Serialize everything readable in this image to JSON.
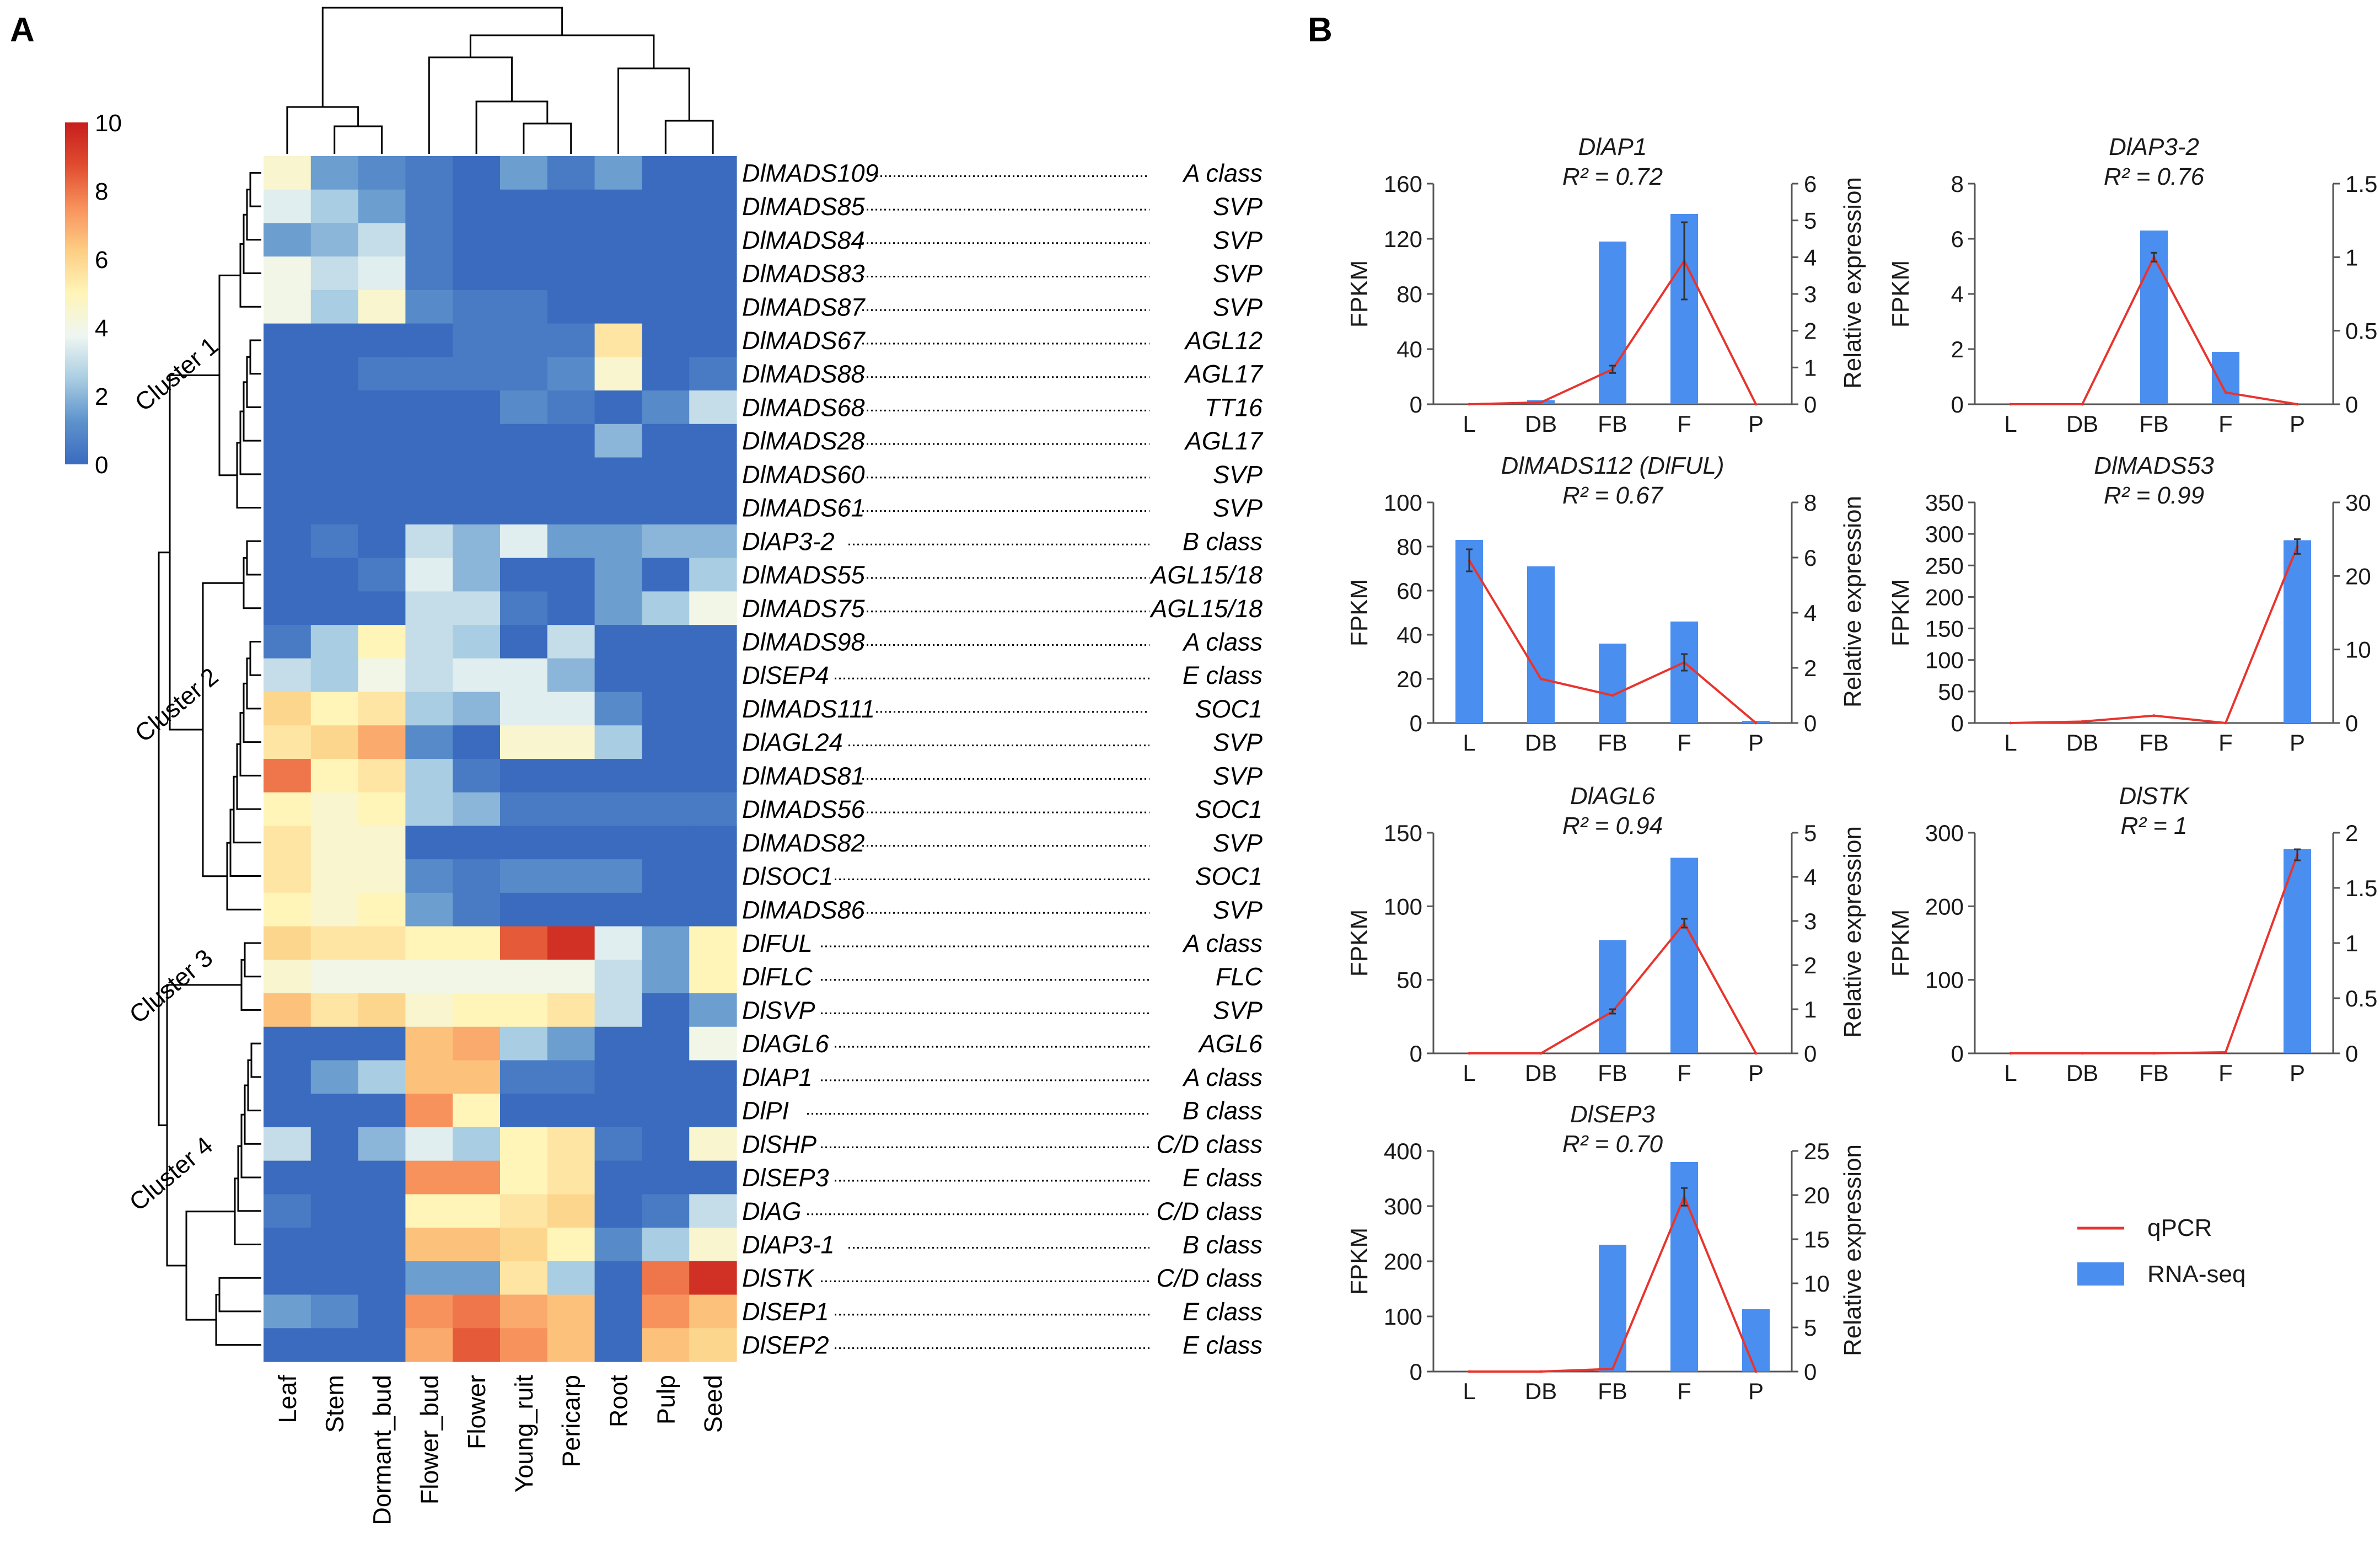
{
  "panel_labels": [
    "A",
    "B"
  ],
  "chart_data": [
    {
      "type": "heatmap",
      "title": "",
      "columns": [
        "Leaf",
        "Stem",
        "Dormant_bud",
        "Flower_bud",
        "Flower",
        "Young_ruit",
        "Pericarp",
        "Root",
        "Pulp",
        "Seed"
      ],
      "rows": [
        "DlMADS109",
        "DlMADS85",
        "DlMADS84",
        "DlMADS83",
        "DlMADS87",
        "DlMADS67",
        "DlMADS88",
        "DlMADS68",
        "DlMADS28",
        "DlMADS60",
        "DlMADS61",
        "DlAP3-2",
        "DlMADS55",
        "DlMADS75",
        "DlMADS98",
        "DlSEP4",
        "DlMADS111",
        "DlAGL24",
        "DlMADS81",
        "DlMADS56",
        "DlMADS82",
        "DlSOC1",
        "DlMADS86",
        "DlFUL",
        "DlFLC",
        "DlSVP",
        "DlAGL6",
        "DlAP1",
        "DlPI",
        "DlSHP",
        "DlSEP3",
        "DlAG",
        "DlAP3-1",
        "DlSTK",
        "DlSEP1",
        "DlSEP2"
      ],
      "row_classes": [
        "A class",
        "SVP",
        "SVP",
        "SVP",
        "SVP",
        "AGL12",
        "AGL17",
        "TT16",
        "AGL17",
        "SVP",
        "SVP",
        "B class",
        "AGL15/18",
        "AGL15/18",
        "A class",
        "E class",
        "SOC1",
        "SVP",
        "SVP",
        "SOC1",
        "SVP",
        "SOC1",
        "SVP",
        "A class",
        "FLC",
        "SVP",
        "AGL6",
        "A class",
        "B class",
        "C/D class",
        "E class",
        "C/D class",
        "B class",
        "C/D class",
        "E class",
        "E class"
      ],
      "values": [
        [
          4.5,
          1.5,
          1,
          0.5,
          0,
          1.5,
          0.5,
          1.5,
          0,
          0
        ],
        [
          3.5,
          2.5,
          1.5,
          0.5,
          0,
          0,
          0,
          0,
          0,
          0
        ],
        [
          1.5,
          2,
          3,
          0.5,
          0,
          0,
          0,
          0,
          0,
          0
        ],
        [
          4,
          3,
          3.5,
          0.5,
          0,
          0,
          0,
          0,
          0,
          0
        ],
        [
          4,
          2.5,
          4.5,
          1,
          0.5,
          0.5,
          0,
          0,
          0,
          0
        ],
        [
          0,
          0,
          0,
          0,
          0.5,
          0.5,
          0.5,
          5.5,
          0,
          0
        ],
        [
          0,
          0,
          0.5,
          0.5,
          0.5,
          0.5,
          1,
          4.5,
          0,
          0.5
        ],
        [
          0,
          0,
          0,
          0,
          0,
          1,
          0.5,
          0,
          1,
          3
        ],
        [
          0,
          0,
          0,
          0,
          0,
          0,
          0,
          2,
          0,
          0
        ],
        [
          0,
          0,
          0,
          0,
          0,
          0,
          0,
          0,
          0,
          0
        ],
        [
          0,
          0,
          0,
          0,
          0,
          0,
          0,
          0,
          0,
          0
        ],
        [
          0,
          0.5,
          0,
          3,
          2,
          3.5,
          1.5,
          1.5,
          2,
          2
        ],
        [
          0,
          0,
          0.5,
          3.5,
          2,
          0,
          0,
          1.5,
          0,
          2.5
        ],
        [
          0,
          0,
          0,
          3,
          3,
          0.5,
          0,
          1.5,
          2.5,
          4
        ],
        [
          0.5,
          2.5,
          5,
          3,
          2.5,
          0,
          3,
          0,
          0,
          0
        ],
        [
          3,
          2.5,
          4,
          3,
          3.5,
          3.5,
          2,
          0,
          0,
          0
        ],
        [
          6,
          5,
          5.5,
          2.5,
          2,
          3.5,
          3.5,
          1,
          0,
          0
        ],
        [
          5.5,
          6,
          7,
          1,
          0,
          4.5,
          4.5,
          2.5,
          0,
          0
        ],
        [
          8,
          5,
          5.5,
          2.5,
          0.5,
          0,
          0,
          0,
          0,
          0
        ],
        [
          5,
          4.5,
          5,
          2.5,
          2,
          0.5,
          0.5,
          0.5,
          0.5,
          0.5
        ],
        [
          5.5,
          4.5,
          4.5,
          0,
          0,
          0,
          0,
          0,
          0,
          0
        ],
        [
          5.5,
          4.5,
          4.5,
          1,
          0.5,
          1,
          1,
          1,
          0,
          0
        ],
        [
          5,
          4.5,
          5,
          1.5,
          0.5,
          0,
          0,
          0,
          0,
          0
        ],
        [
          6,
          5.5,
          5.5,
          5,
          5,
          8.5,
          9.5,
          3.5,
          1.5,
          5
        ],
        [
          4.5,
          4,
          4,
          4,
          4,
          4,
          4,
          3,
          1.5,
          5
        ],
        [
          6.5,
          5.5,
          6,
          4.5,
          5,
          5,
          5.5,
          3,
          0,
          1.5
        ],
        [
          0,
          0,
          0,
          6.5,
          7,
          2.5,
          1.5,
          0,
          0,
          4
        ],
        [
          0,
          1.5,
          2.5,
          6.5,
          6.5,
          0.5,
          0.5,
          0,
          0,
          0
        ],
        [
          0,
          0,
          0,
          7.5,
          5,
          0,
          0,
          0,
          0,
          0
        ],
        [
          3,
          0,
          2,
          3.5,
          2.5,
          5,
          5.5,
          0.5,
          0,
          4.5
        ],
        [
          0,
          0,
          0,
          7.5,
          7.5,
          5,
          5.5,
          0,
          0,
          0
        ],
        [
          0.5,
          0,
          0,
          5,
          5,
          5.5,
          6,
          0,
          0.5,
          3
        ],
        [
          0,
          0,
          0,
          6.5,
          6.5,
          6,
          5,
          1,
          2.5,
          4.5
        ],
        [
          0,
          0,
          0,
          1.5,
          1.5,
          5.5,
          2.5,
          0,
          8,
          9.5
        ],
        [
          1.5,
          1,
          0,
          7.5,
          8,
          7,
          6.5,
          0,
          7.5,
          6.5
        ],
        [
          0,
          0,
          0,
          7,
          8.5,
          7.5,
          6.5,
          0,
          6.5,
          6
        ]
      ],
      "color_scale": {
        "min": 0,
        "max": 10,
        "ticks": [
          "10",
          "8",
          "6",
          "4",
          "2",
          "0"
        ],
        "colors": [
          "#3a6bbf",
          "#5d92cc",
          "#a9cde2",
          "#eef6f2",
          "#fff5b8",
          "#fdce84",
          "#f8925c",
          "#e04c2f",
          "#c71e1e"
        ]
      },
      "cluster_labels": [
        "Cluster 1",
        "Cluster 2",
        "Cluster 3",
        "Cluster 4"
      ]
    },
    {
      "type": "bar+line",
      "title": "DlAP1",
      "r2": "R² = 0.72",
      "categories": [
        "L",
        "DB",
        "FB",
        "F",
        "P"
      ],
      "ylabel": "FPKM",
      "y2label": "Relative expression",
      "ylim": [
        0,
        160
      ],
      "yticks": [
        0,
        40,
        80,
        120,
        160
      ],
      "y2lim": [
        0,
        6
      ],
      "y2ticks": [
        0,
        1,
        2,
        3,
        4,
        5,
        6
      ],
      "series": [
        {
          "name": "RNA-seq",
          "axis": "left",
          "kind": "bar",
          "values": [
            0,
            3,
            118,
            138,
            0
          ]
        },
        {
          "name": "qPCR",
          "axis": "right",
          "kind": "line",
          "values": [
            0,
            0.05,
            0.95,
            3.9,
            0
          ],
          "errors": [
            0,
            0,
            0.1,
            1.05,
            0
          ]
        }
      ]
    },
    {
      "type": "bar+line",
      "title": "DlAP3-2",
      "r2": "R² = 0.76",
      "categories": [
        "L",
        "DB",
        "FB",
        "F",
        "P"
      ],
      "ylabel": "FPKM",
      "y2label": "Relative expression",
      "ylim": [
        0,
        8
      ],
      "yticks": [
        0,
        2,
        4,
        6,
        8
      ],
      "y2lim": [
        0,
        1.5
      ],
      "y2ticks": [
        0,
        0.5,
        1,
        1.5
      ],
      "series": [
        {
          "name": "RNA-seq",
          "axis": "left",
          "kind": "bar",
          "values": [
            0,
            0,
            6.3,
            1.9,
            0
          ]
        },
        {
          "name": "qPCR",
          "axis": "right",
          "kind": "line",
          "values": [
            0,
            0,
            1.0,
            0.08,
            0
          ],
          "errors": [
            0,
            0,
            0.03,
            0,
            0
          ]
        }
      ]
    },
    {
      "type": "bar+line",
      "title": "DlMADS112 (DlFUL)",
      "r2": "R² = 0.67",
      "categories": [
        "L",
        "DB",
        "FB",
        "F",
        "P"
      ],
      "ylabel": "FPKM",
      "y2label": "Relative expression",
      "ylim": [
        0,
        100
      ],
      "yticks": [
        0,
        20,
        40,
        60,
        80,
        100
      ],
      "y2lim": [
        0,
        8
      ],
      "y2ticks": [
        0,
        2,
        4,
        6,
        8
      ],
      "series": [
        {
          "name": "RNA-seq",
          "axis": "left",
          "kind": "bar",
          "values": [
            83,
            71,
            36,
            46,
            1
          ]
        },
        {
          "name": "qPCR",
          "axis": "right",
          "kind": "line",
          "values": [
            5.9,
            1.6,
            1.0,
            2.2,
            0
          ],
          "errors": [
            0.4,
            0,
            0,
            0.3,
            0
          ]
        }
      ]
    },
    {
      "type": "bar+line",
      "title": "DlMADS53",
      "r2": "R² = 0.99",
      "categories": [
        "L",
        "DB",
        "FB",
        "F",
        "P"
      ],
      "ylabel": "FPKM",
      "y2label": "Relative expression",
      "ylim": [
        0,
        350
      ],
      "yticks": [
        0,
        50,
        100,
        150,
        200,
        250,
        300,
        350
      ],
      "y2lim": [
        0,
        30
      ],
      "y2ticks": [
        0,
        10,
        20,
        30
      ],
      "series": [
        {
          "name": "RNA-seq",
          "axis": "left",
          "kind": "bar",
          "values": [
            0,
            0,
            0,
            0,
            290
          ]
        },
        {
          "name": "qPCR",
          "axis": "right",
          "kind": "line",
          "values": [
            0,
            0.2,
            1.0,
            0,
            24
          ],
          "errors": [
            0,
            0,
            0,
            0,
            1
          ]
        }
      ]
    },
    {
      "type": "bar+line",
      "title": "DlAGL6",
      "r2": "R² = 0.94",
      "categories": [
        "L",
        "DB",
        "FB",
        "F",
        "P"
      ],
      "ylabel": "FPKM",
      "y2label": "Relative expression",
      "ylim": [
        0,
        150
      ],
      "yticks": [
        0,
        50,
        100,
        150
      ],
      "y2lim": [
        0,
        5
      ],
      "y2ticks": [
        0,
        1,
        2,
        3,
        4,
        5
      ],
      "series": [
        {
          "name": "RNA-seq",
          "axis": "left",
          "kind": "bar",
          "values": [
            0,
            0,
            77,
            133,
            0
          ]
        },
        {
          "name": "qPCR",
          "axis": "right",
          "kind": "line",
          "values": [
            0,
            0,
            0.95,
            2.95,
            0
          ],
          "errors": [
            0,
            0,
            0.05,
            0.1,
            0
          ]
        }
      ]
    },
    {
      "type": "bar+line",
      "title": "DlSTK",
      "r2": "R² = 1",
      "categories": [
        "L",
        "DB",
        "FB",
        "F",
        "P"
      ],
      "ylabel": "FPKM",
      "y2label": "Relative expression",
      "ylim": [
        0,
        300
      ],
      "yticks": [
        0,
        100,
        200,
        300
      ],
      "y2lim": [
        0,
        2
      ],
      "y2ticks": [
        0,
        0.5,
        1,
        1.5,
        2
      ],
      "series": [
        {
          "name": "RNA-seq",
          "axis": "left",
          "kind": "bar",
          "values": [
            0,
            0,
            0,
            0,
            278
          ]
        },
        {
          "name": "qPCR",
          "axis": "right",
          "kind": "line",
          "values": [
            0,
            0,
            0,
            0.01,
            1.8
          ],
          "errors": [
            0,
            0,
            0,
            0,
            0.05
          ]
        }
      ]
    },
    {
      "type": "bar+line",
      "title": "DlSEP3",
      "r2": "R² = 0.70",
      "categories": [
        "L",
        "DB",
        "FB",
        "F",
        "P"
      ],
      "ylabel": "FPKM",
      "y2label": "Relative expression",
      "ylim": [
        0,
        400
      ],
      "yticks": [
        0,
        100,
        200,
        300,
        400
      ],
      "y2lim": [
        0,
        25
      ],
      "y2ticks": [
        0,
        5,
        10,
        15,
        20,
        25
      ],
      "series": [
        {
          "name": "RNA-seq",
          "axis": "left",
          "kind": "bar",
          "values": [
            0,
            0,
            230,
            380,
            113
          ]
        },
        {
          "name": "qPCR",
          "axis": "right",
          "kind": "line",
          "values": [
            0,
            0,
            0.3,
            19.8,
            0
          ],
          "errors": [
            0,
            0,
            0,
            1.0,
            0
          ]
        }
      ]
    }
  ],
  "legend": {
    "line_label": "qPCR",
    "bar_label": "RNA-seq"
  },
  "colors": {
    "bar": "#4a8ef0",
    "line": "#e8342e",
    "text": "#1a1a1a"
  }
}
